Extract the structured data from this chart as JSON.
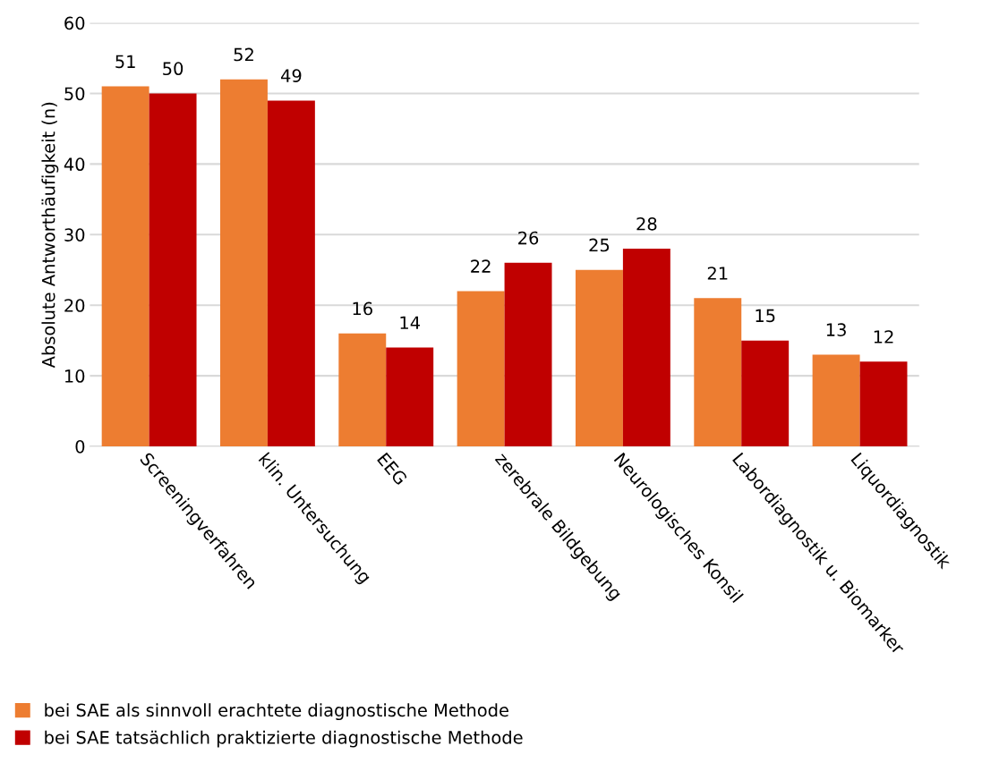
{
  "chart_data": {
    "type": "bar",
    "ylabel": "Absolute Antworthäufigkeit (n)",
    "categories": [
      "Screeningverfahren",
      "klin. Untersuchung",
      "EEG",
      "zerebrale Bildgebung",
      "Neurologisches Konsil",
      "Labordiagnostik u. Biomarker",
      "Liquordiagnostik"
    ],
    "series": [
      {
        "name": "bei SAE als sinnvoll erachtete diagnostische Methode",
        "color": "#ed7d31",
        "values": [
          51,
          52,
          16,
          22,
          25,
          21,
          13
        ]
      },
      {
        "name": "bei SAE tatsächlich praktizierte diagnostische Methode",
        "color": "#c00000",
        "values": [
          50,
          49,
          14,
          26,
          28,
          15,
          12
        ]
      }
    ],
    "ylim": [
      0,
      60
    ],
    "yticks": [
      0,
      10,
      20,
      30,
      40,
      50,
      60
    ],
    "grid": "y",
    "legend": "bottom left",
    "data_labels": true
  }
}
